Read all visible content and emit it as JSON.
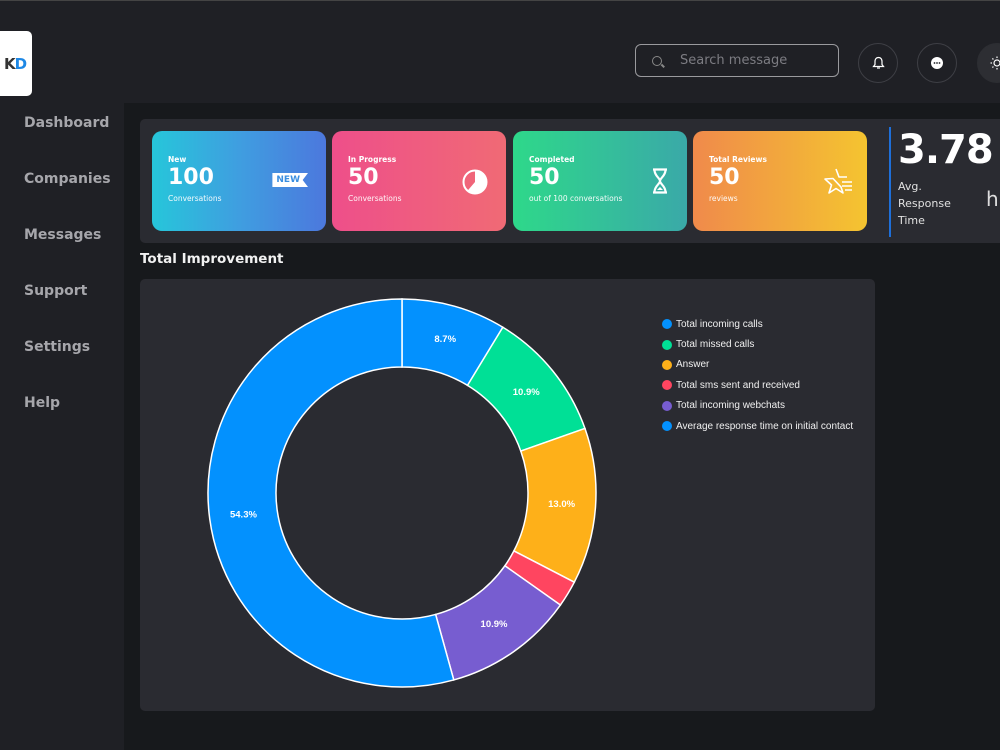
{
  "header": {
    "logo_text_left": "K",
    "logo_text_right": "D",
    "search": {
      "placeholder": "Search message",
      "value": ""
    },
    "buttons": [
      {
        "name": "notifications",
        "icon": "bell-icon"
      },
      {
        "name": "messages",
        "icon": "chat-bubble-icon"
      },
      {
        "name": "theme-toggle",
        "icon": "sun-icon"
      }
    ]
  },
  "sidebar": {
    "items": [
      {
        "label": "Dashboard"
      },
      {
        "label": "Companies"
      },
      {
        "label": "Messages"
      },
      {
        "label": "Support"
      },
      {
        "label": "Settings"
      },
      {
        "label": "Help"
      }
    ]
  },
  "stats": [
    {
      "label": "New",
      "value": "100",
      "sub": "Conversations",
      "icon": "new-badge-icon",
      "badge": "NEW"
    },
    {
      "label": "In Progress",
      "value": "50",
      "sub": "Conversations",
      "icon": "pie-progress-icon"
    },
    {
      "label": "Completed",
      "value": "50",
      "sub": "out of 100 conversations",
      "icon": "hourglass-icon"
    },
    {
      "label": "Total Reviews",
      "value": "50",
      "sub": "reviews",
      "icon": "star-list-icon"
    }
  ],
  "avg_response": {
    "value": "3.78",
    "label": "Avg. Response Time",
    "label_lines": [
      "Avg.",
      "Response",
      "Time"
    ],
    "unit_partial": "h"
  },
  "section": {
    "title": "Total Improvement"
  },
  "colors": {
    "blue": "#0391fe",
    "green": "#00e096",
    "orange": "#feb019",
    "red": "#ff4560",
    "purple": "#775dd0",
    "accent": "#1e6fd9"
  },
  "chart_data": {
    "type": "pie",
    "subtype": "donut",
    "title": "Total Improvement",
    "legend_position": "right",
    "series": [
      {
        "name": "Total incoming calls",
        "value": 8.7,
        "label": "8.7%",
        "color": "#0391fe"
      },
      {
        "name": "Total missed calls",
        "value": 10.9,
        "label": "10.9%",
        "color": "#00e096"
      },
      {
        "name": "Answer",
        "value": 13.0,
        "label": "13.0%",
        "color": "#feb019"
      },
      {
        "name": "Total sms sent and received",
        "value": 2.2,
        "label": "",
        "color": "#ff4560"
      },
      {
        "name": "Total incoming webchats",
        "value": 10.9,
        "label": "10.9%",
        "color": "#775dd0"
      },
      {
        "name": "Average response time on initial contact",
        "value": 54.3,
        "label": "54.3%",
        "color": "#0391fe"
      }
    ]
  }
}
